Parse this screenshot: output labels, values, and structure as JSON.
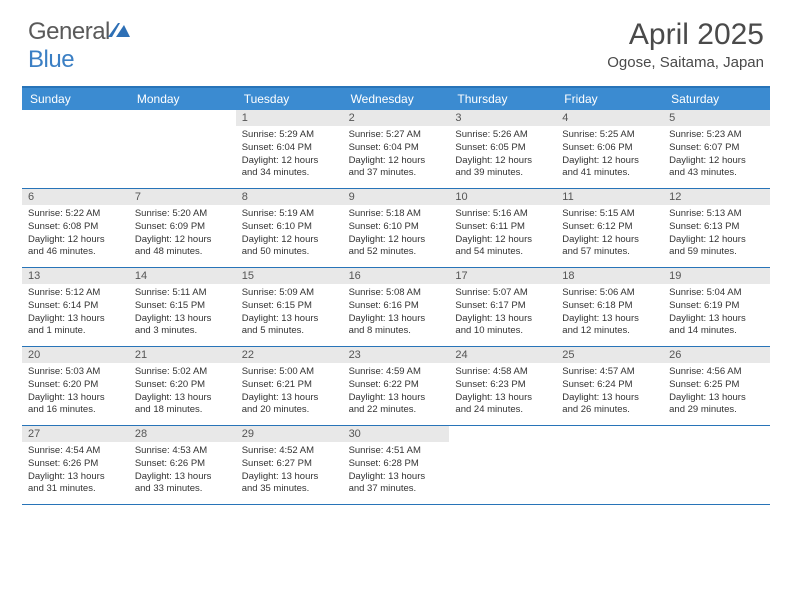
{
  "brand": {
    "text1": "General",
    "text2": "Blue"
  },
  "title": "April 2025",
  "location": "Ogose, Saitama, Japan",
  "colors": {
    "header_bg": "#3b8bd1",
    "border": "#2874b8",
    "daynum_bg": "#e8e8e8",
    "logo_gray": "#5a5a5a",
    "logo_blue": "#3b7fc4"
  },
  "day_headers": [
    "Sunday",
    "Monday",
    "Tuesday",
    "Wednesday",
    "Thursday",
    "Friday",
    "Saturday"
  ],
  "weeks": [
    [
      null,
      null,
      {
        "n": "1",
        "sr": "5:29 AM",
        "ss": "6:04 PM",
        "dl": "12 hours and 34 minutes."
      },
      {
        "n": "2",
        "sr": "5:27 AM",
        "ss": "6:04 PM",
        "dl": "12 hours and 37 minutes."
      },
      {
        "n": "3",
        "sr": "5:26 AM",
        "ss": "6:05 PM",
        "dl": "12 hours and 39 minutes."
      },
      {
        "n": "4",
        "sr": "5:25 AM",
        "ss": "6:06 PM",
        "dl": "12 hours and 41 minutes."
      },
      {
        "n": "5",
        "sr": "5:23 AM",
        "ss": "6:07 PM",
        "dl": "12 hours and 43 minutes."
      }
    ],
    [
      {
        "n": "6",
        "sr": "5:22 AM",
        "ss": "6:08 PM",
        "dl": "12 hours and 46 minutes."
      },
      {
        "n": "7",
        "sr": "5:20 AM",
        "ss": "6:09 PM",
        "dl": "12 hours and 48 minutes."
      },
      {
        "n": "8",
        "sr": "5:19 AM",
        "ss": "6:10 PM",
        "dl": "12 hours and 50 minutes."
      },
      {
        "n": "9",
        "sr": "5:18 AM",
        "ss": "6:10 PM",
        "dl": "12 hours and 52 minutes."
      },
      {
        "n": "10",
        "sr": "5:16 AM",
        "ss": "6:11 PM",
        "dl": "12 hours and 54 minutes."
      },
      {
        "n": "11",
        "sr": "5:15 AM",
        "ss": "6:12 PM",
        "dl": "12 hours and 57 minutes."
      },
      {
        "n": "12",
        "sr": "5:13 AM",
        "ss": "6:13 PM",
        "dl": "12 hours and 59 minutes."
      }
    ],
    [
      {
        "n": "13",
        "sr": "5:12 AM",
        "ss": "6:14 PM",
        "dl": "13 hours and 1 minute."
      },
      {
        "n": "14",
        "sr": "5:11 AM",
        "ss": "6:15 PM",
        "dl": "13 hours and 3 minutes."
      },
      {
        "n": "15",
        "sr": "5:09 AM",
        "ss": "6:15 PM",
        "dl": "13 hours and 5 minutes."
      },
      {
        "n": "16",
        "sr": "5:08 AM",
        "ss": "6:16 PM",
        "dl": "13 hours and 8 minutes."
      },
      {
        "n": "17",
        "sr": "5:07 AM",
        "ss": "6:17 PM",
        "dl": "13 hours and 10 minutes."
      },
      {
        "n": "18",
        "sr": "5:06 AM",
        "ss": "6:18 PM",
        "dl": "13 hours and 12 minutes."
      },
      {
        "n": "19",
        "sr": "5:04 AM",
        "ss": "6:19 PM",
        "dl": "13 hours and 14 minutes."
      }
    ],
    [
      {
        "n": "20",
        "sr": "5:03 AM",
        "ss": "6:20 PM",
        "dl": "13 hours and 16 minutes."
      },
      {
        "n": "21",
        "sr": "5:02 AM",
        "ss": "6:20 PM",
        "dl": "13 hours and 18 minutes."
      },
      {
        "n": "22",
        "sr": "5:00 AM",
        "ss": "6:21 PM",
        "dl": "13 hours and 20 minutes."
      },
      {
        "n": "23",
        "sr": "4:59 AM",
        "ss": "6:22 PM",
        "dl": "13 hours and 22 minutes."
      },
      {
        "n": "24",
        "sr": "4:58 AM",
        "ss": "6:23 PM",
        "dl": "13 hours and 24 minutes."
      },
      {
        "n": "25",
        "sr": "4:57 AM",
        "ss": "6:24 PM",
        "dl": "13 hours and 26 minutes."
      },
      {
        "n": "26",
        "sr": "4:56 AM",
        "ss": "6:25 PM",
        "dl": "13 hours and 29 minutes."
      }
    ],
    [
      {
        "n": "27",
        "sr": "4:54 AM",
        "ss": "6:26 PM",
        "dl": "13 hours and 31 minutes."
      },
      {
        "n": "28",
        "sr": "4:53 AM",
        "ss": "6:26 PM",
        "dl": "13 hours and 33 minutes."
      },
      {
        "n": "29",
        "sr": "4:52 AM",
        "ss": "6:27 PM",
        "dl": "13 hours and 35 minutes."
      },
      {
        "n": "30",
        "sr": "4:51 AM",
        "ss": "6:28 PM",
        "dl": "13 hours and 37 minutes."
      },
      null,
      null,
      null
    ]
  ],
  "labels": {
    "sunrise": "Sunrise:",
    "sunset": "Sunset:",
    "daylight": "Daylight:"
  }
}
